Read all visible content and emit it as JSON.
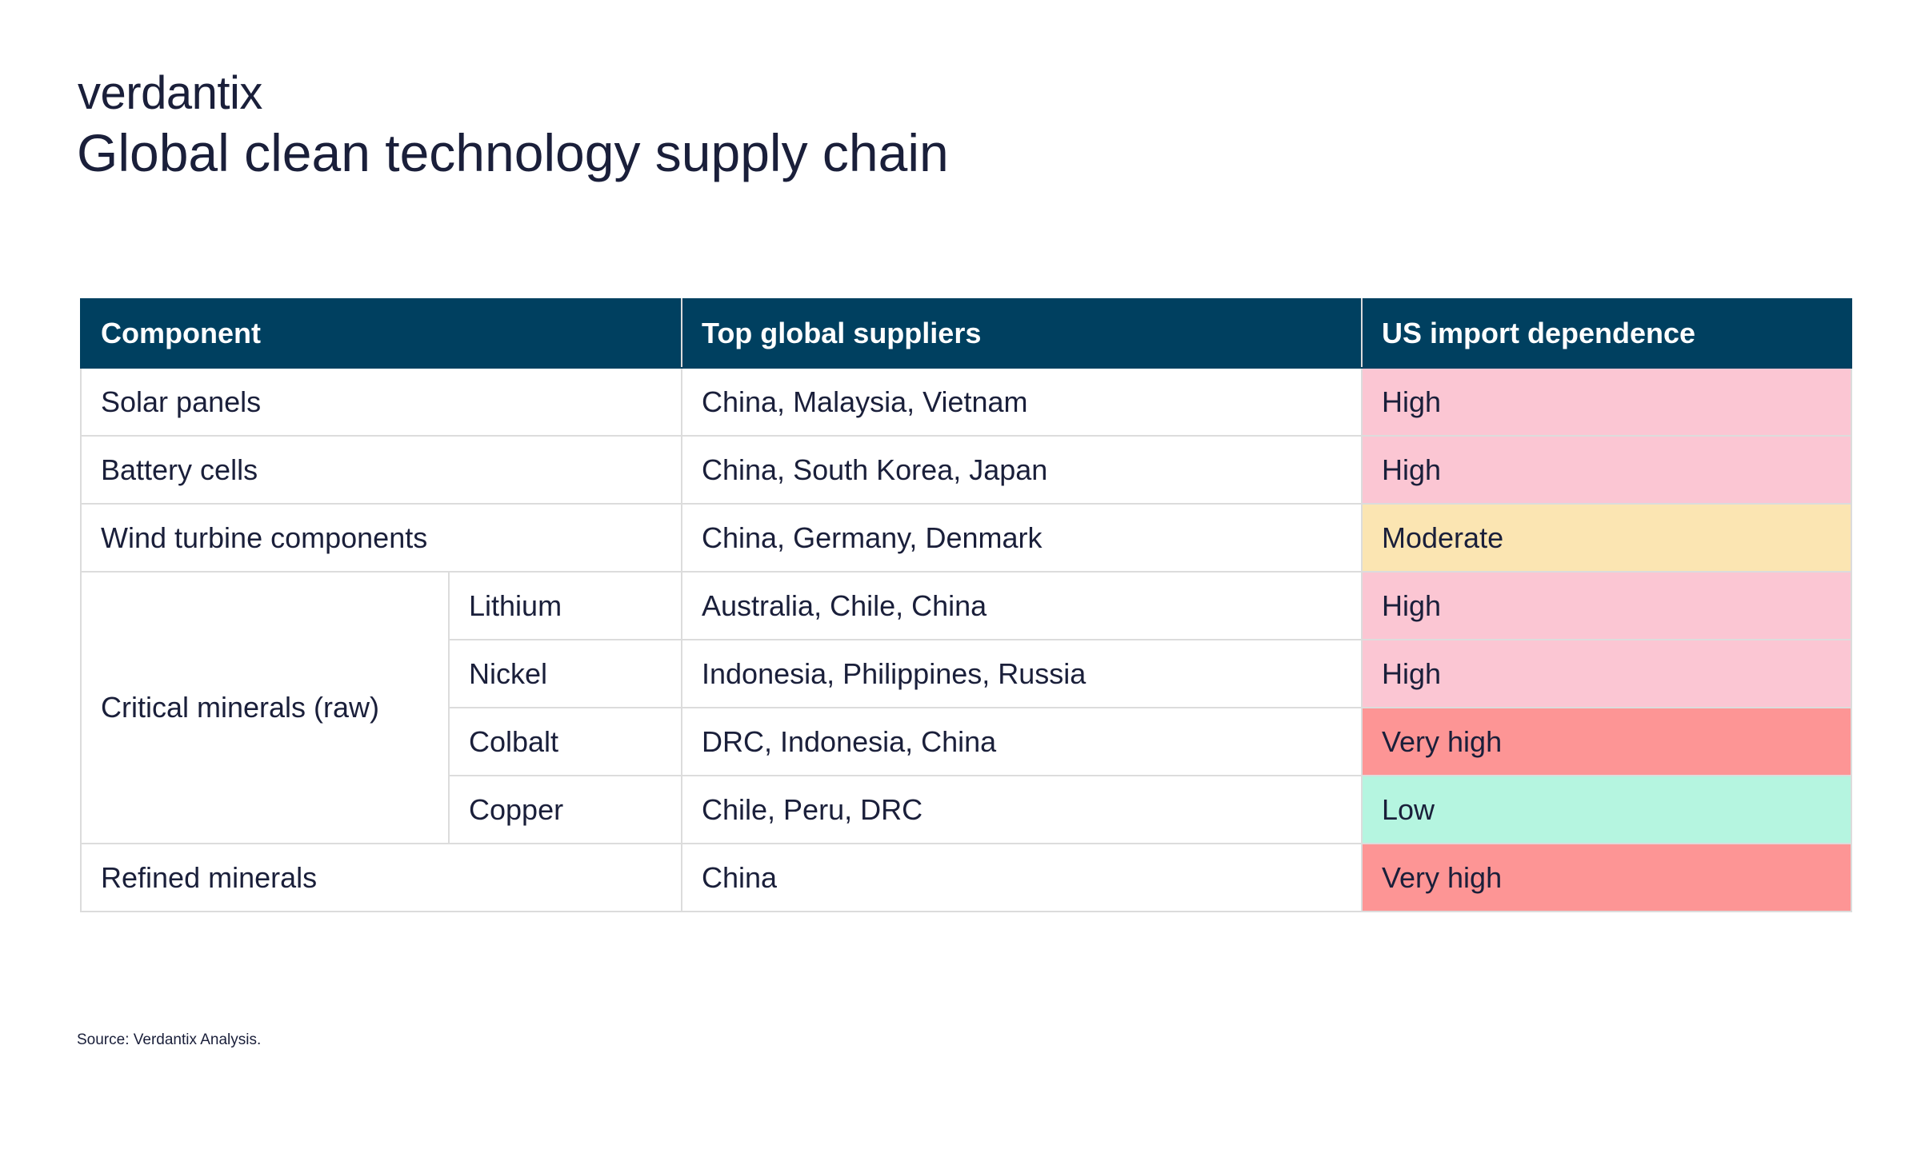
{
  "logo": "verdantix",
  "title": "Global clean technology supply chain",
  "table": {
    "headers": [
      "Component",
      "Top global suppliers",
      "US import dependence"
    ],
    "rows": [
      {
        "component": "Solar panels",
        "suppliers": "China, Malaysia, Vietnam",
        "dependence": "High"
      },
      {
        "component": "Battery cells",
        "suppliers": "China, South Korea, Japan",
        "dependence": "High"
      },
      {
        "component": "Wind turbine components",
        "suppliers": "China, Germany, Denmark",
        "dependence": "Moderate"
      },
      {
        "component": "Critical minerals (raw)",
        "sub": "Lithium",
        "suppliers": "Australia, Chile, China",
        "dependence": "High"
      },
      {
        "sub": "Nickel",
        "suppliers": "Indonesia, Philippines, Russia",
        "dependence": "High"
      },
      {
        "sub": "Colbalt",
        "suppliers": "DRC, Indonesia, China",
        "dependence": "Very high"
      },
      {
        "sub": "Copper",
        "suppliers": "Chile, Peru, DRC",
        "dependence": "Low"
      },
      {
        "component": "Refined minerals",
        "suppliers": "China",
        "dependence": "Very high"
      }
    ]
  },
  "colors": {
    "header_bg": "#004060",
    "high": "#fbc6d3",
    "moderate": "#fbe5b2",
    "very_high": "#fd9595",
    "low": "#b5f5e0"
  },
  "source": "Source: Verdantix Analysis."
}
